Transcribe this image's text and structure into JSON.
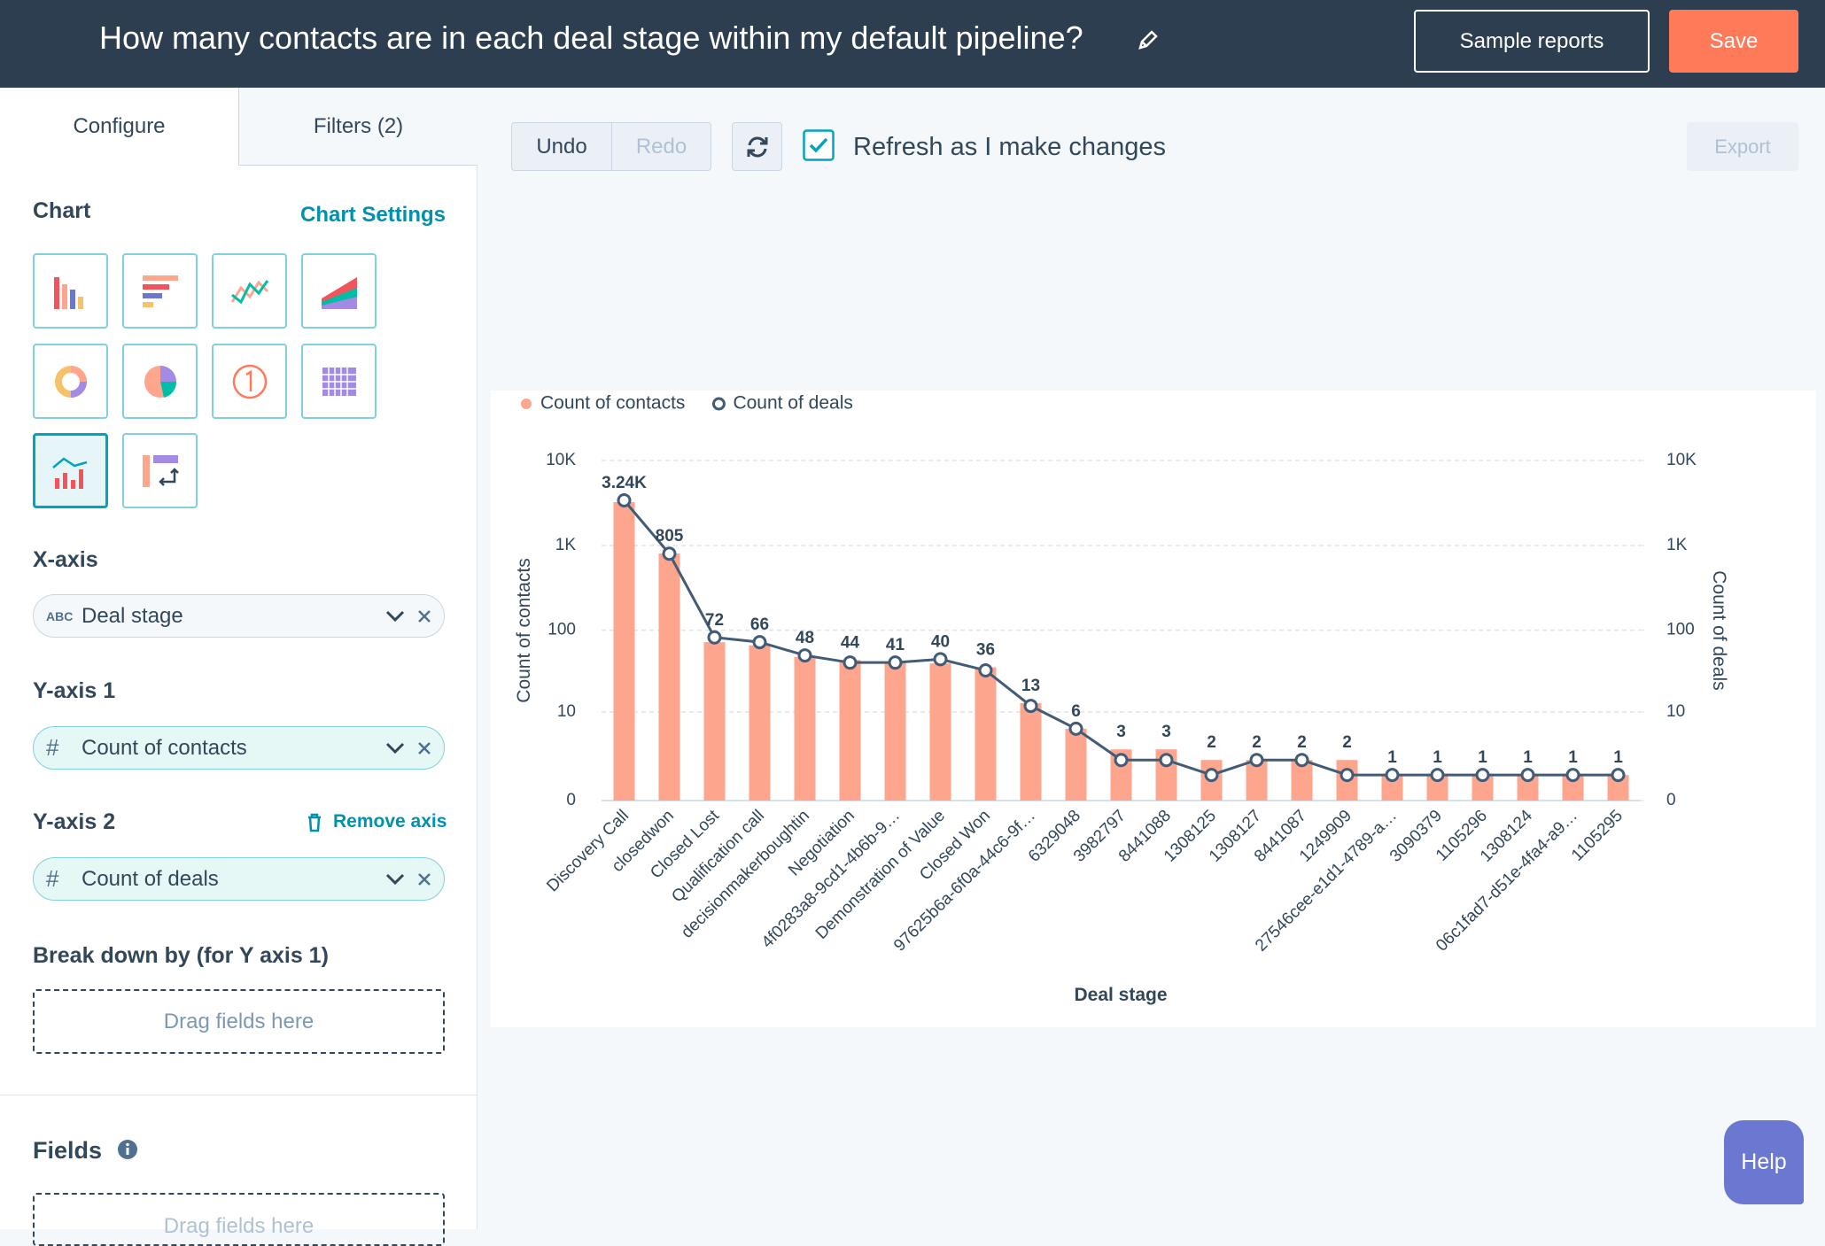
{
  "header": {
    "title": "How many contacts are in each deal stage within my default pipeline?",
    "sample_reports": "Sample reports",
    "save": "Save"
  },
  "tabs": [
    "Configure",
    "Filters (2)"
  ],
  "toolbar": {
    "undo": "Undo",
    "redo": "Redo",
    "refresh_label": "Refresh as I make changes",
    "export": "Export"
  },
  "sidebar": {
    "chart_heading": "Chart",
    "chart_settings": "Chart Settings",
    "x_axis": {
      "label": "X-axis",
      "field_type": "ABC",
      "field": "Deal stage"
    },
    "y_axis_1": {
      "label": "Y-axis 1",
      "field_type": "#",
      "field": "Count of contacts"
    },
    "y_axis_2": {
      "label": "Y-axis 2",
      "remove": "Remove axis",
      "field_type": "#",
      "field": "Count of deals"
    },
    "breakdown": {
      "label": "Break down by (for Y axis 1)",
      "placeholder": "Drag fields here"
    },
    "fields": {
      "label": "Fields",
      "placeholder": "Drag fields here"
    }
  },
  "help": "Help",
  "chart_data": {
    "type": "combo",
    "x_label": "Deal stage",
    "y_label": "Count of contacts",
    "y2_label": "Count of deals",
    "categories": [
      "Discovery Call",
      "closedwon",
      "Closed Lost",
      "Qualification call",
      "decisionmakerboughtin",
      "Negotiation",
      "4f0283a8-9cd1-4b6b-9…",
      "Demonstration of Value",
      "Closed Won",
      "97625b6a-6f0a-44c6-9f…",
      "6329048",
      "3982797",
      "8441088",
      "1308125",
      "1308127",
      "8441087",
      "1249909",
      "27546cee-e1d1-4789-a…",
      "3090379",
      "1105296",
      "1308124",
      "06c1fad7-d51e-4fa4-a9…",
      "1105295"
    ],
    "series": [
      {
        "name": "Count of contacts",
        "type": "bar",
        "color": "#fea58e",
        "values": [
          3240,
          805,
          72,
          66,
          48,
          44,
          41,
          40,
          36,
          13,
          6,
          3,
          3,
          2,
          2,
          2,
          2,
          1,
          1,
          1,
          1,
          1,
          1
        ],
        "value_labels": [
          "3.24K",
          "805",
          "72",
          "66",
          "48",
          "44",
          "41",
          "40",
          "36",
          "13",
          "6",
          "3",
          "3",
          "2",
          "2",
          "2",
          "2",
          "1",
          "1",
          "1",
          "1",
          "1",
          "1"
        ]
      },
      {
        "name": "Count of deals",
        "type": "line",
        "color": "#425b76",
        "axis": "y2",
        "values": [
          3400,
          800,
          82,
          72,
          50,
          41,
          41,
          45,
          33,
          12,
          6,
          2,
          2,
          1,
          2,
          2,
          1,
          1,
          1,
          1,
          1,
          1,
          1
        ]
      }
    ],
    "ylim": [
      0,
      10000
    ],
    "yticks": [
      0,
      10,
      100,
      {
        "value": 1000,
        "label": "1K"
      },
      {
        "value": 10000,
        "label": "10K"
      }
    ],
    "y2lim": [
      0,
      10000
    ],
    "y2ticks": [
      0,
      10,
      100,
      {
        "value": 1000,
        "label": "1K"
      },
      {
        "value": 10000,
        "label": "10K"
      }
    ],
    "log_scale": true,
    "grid": true,
    "legend": "top-left"
  }
}
